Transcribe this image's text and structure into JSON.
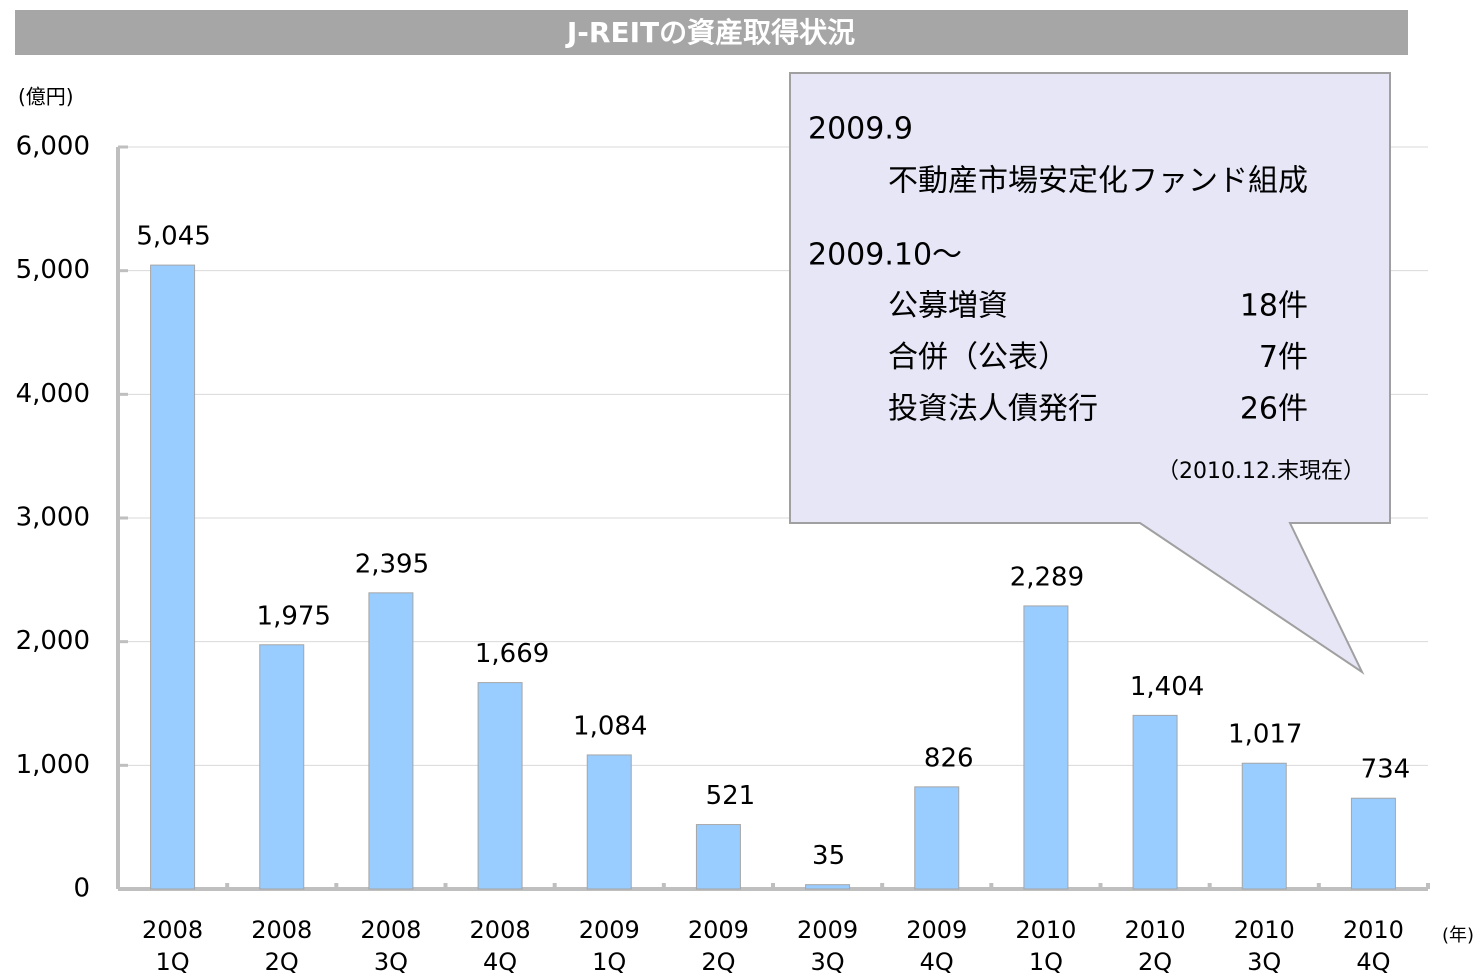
{
  "chart_data": {
    "type": "bar",
    "title": "J-REITの資産取得状況",
    "y_label": "(億円)",
    "x_label": "(年)",
    "categories": [
      "2008\n1Q",
      "2008\n2Q",
      "2008\n3Q",
      "2008\n4Q",
      "2009\n1Q",
      "2009\n2Q",
      "2009\n3Q",
      "2009\n4Q",
      "2010\n1Q",
      "2010\n2Q",
      "2010\n3Q",
      "2010\n4Q"
    ],
    "values": [
      5045,
      1975,
      2395,
      1669,
      1084,
      521,
      35,
      826,
      2289,
      1404,
      1017,
      734
    ],
    "value_labels": [
      "5,045",
      "1,975",
      "2,395",
      "1,669",
      "1,084",
      "521",
      "35",
      "826",
      "2,289",
      "1,404",
      "1,017",
      "734"
    ],
    "color": "#99ccff",
    "ylim": [
      0,
      6000
    ],
    "yticks": [
      0,
      {
        "value": 1000,
        "label": "1,000"
      },
      {
        "value": 2000,
        "label": "2,000"
      },
      {
        "value": 3000,
        "label": "3,000"
      },
      {
        "value": 4000,
        "label": "4,000"
      },
      {
        "value": 5000,
        "label": "5,000"
      },
      {
        "value": 6000,
        "label": "6,000"
      }
    ],
    "grid": true,
    "callout": {
      "heading1": "2009.9",
      "item1": "不動産市場安定化ファンド組成",
      "heading2": "2009.10～",
      "rows": [
        [
          "公募増資",
          "18件"
        ],
        [
          "合併（公表）",
          "7件"
        ],
        [
          "投資法人債発行",
          "26件"
        ]
      ],
      "note": "（2010.12.末現在）"
    }
  }
}
